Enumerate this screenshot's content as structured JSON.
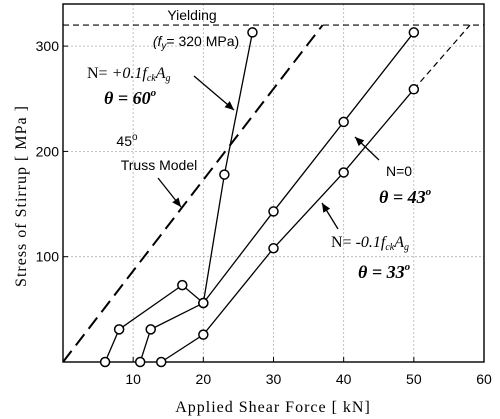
{
  "chart_data": {
    "type": "line",
    "xlabel": "Applied Shear Force [ kN]",
    "ylabel": "Stress of Stirrup [ MPa ]",
    "xlim": [
      0,
      60
    ],
    "ylim": [
      0,
      340
    ],
    "x_ticks": [
      "10",
      "20",
      "30",
      "40",
      "50",
      "60"
    ],
    "y_ticks": [
      "100",
      "200",
      "300"
    ],
    "x_tick_values": [
      10,
      20,
      30,
      40,
      50,
      60
    ],
    "y_tick_values": [
      100,
      200,
      300
    ],
    "grid": true,
    "yielding_label": "Yielding",
    "yielding_sub": "(f",
    "yielding_sub_y": "y",
    "yielding_sub_rest": "= 320 MPa)",
    "yield_line_y": 320,
    "truss_angle_label": "45",
    "truss_angle_sup": "o",
    "truss_label": "Truss Model",
    "series": [
      {
        "name": "N= +0.1fckAg",
        "label_prefix": "N= ",
        "label_coef": "+0.1",
        "label_f": "f",
        "label_ck": "ck",
        "label_A": "A",
        "label_g": "g",
        "theta_label": "θ = 60",
        "theta_sup": "o",
        "x": [
          6,
          8,
          17,
          20,
          23,
          27
        ],
        "y": [
          0,
          31,
          73,
          56,
          178,
          313
        ]
      },
      {
        "name": "N=0",
        "label": "N=0",
        "theta_label": "θ = 43",
        "theta_sup": "o",
        "x": [
          11,
          12.5,
          20,
          30,
          40,
          50
        ],
        "y": [
          0,
          31,
          56,
          143,
          228,
          313
        ]
      },
      {
        "name": "N= -0.1fckAg",
        "label_prefix": "N= ",
        "label_coef": "-0.1",
        "label_f": "f",
        "label_ck": "ck",
        "label_A": "A",
        "label_g": "g",
        "theta_label": "θ = 33",
        "theta_sup": "o",
        "x": [
          14,
          20,
          30,
          40,
          50
        ],
        "y": [
          0,
          26,
          108,
          180,
          259
        ]
      }
    ],
    "truss_model_line": {
      "x": [
        0,
        37
      ],
      "y": [
        0,
        320
      ]
    },
    "extrapolation_line": {
      "x": [
        50,
        58
      ],
      "y": [
        259,
        320
      ]
    }
  }
}
